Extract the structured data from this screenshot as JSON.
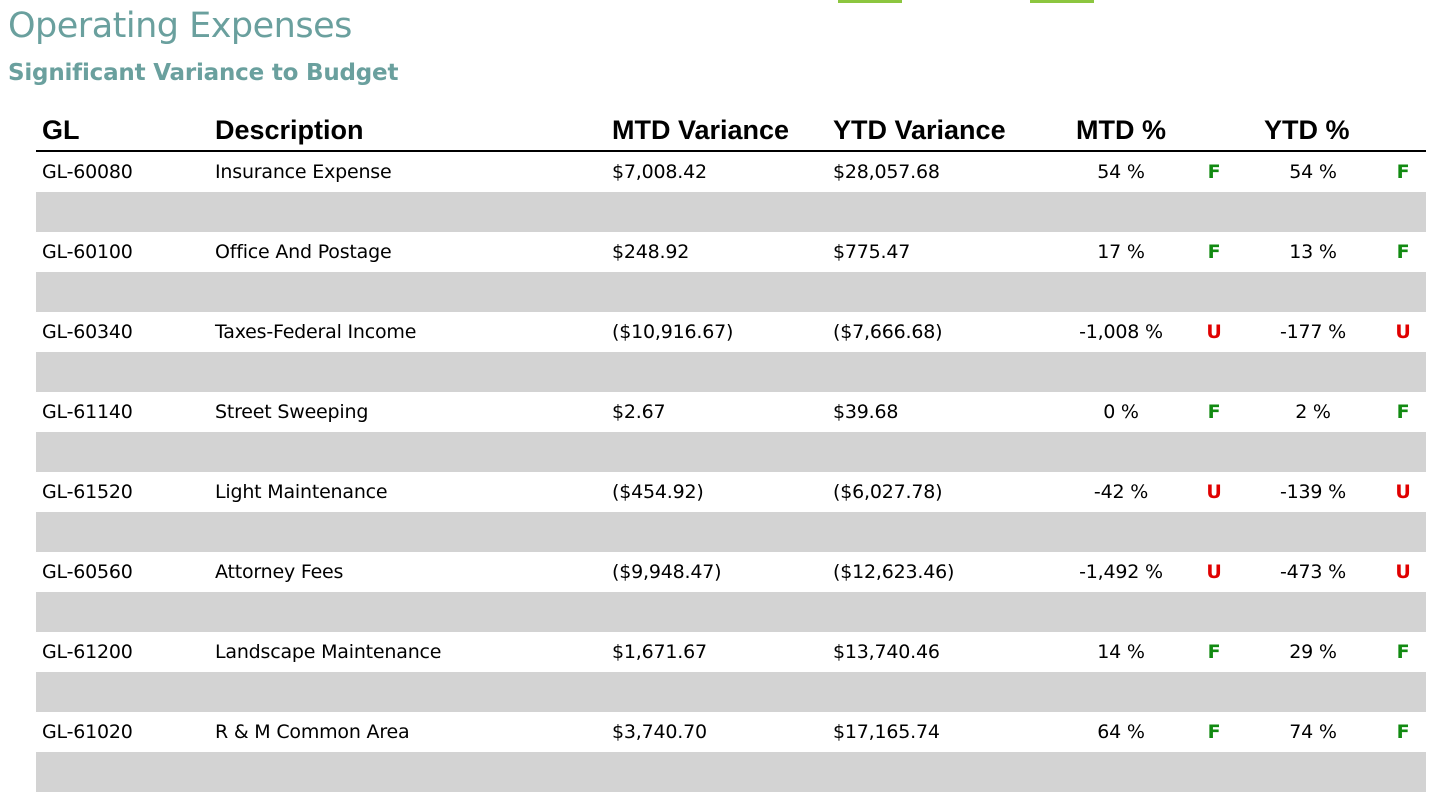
{
  "report": {
    "title": "Operating Expenses",
    "subtitle": "Significant Variance to Budget",
    "accent_color": "#6aa09e",
    "favorable_color": "#118a11",
    "unfavorable_color": "#e00000",
    "band_color": "#d3d3d3"
  },
  "columns": {
    "gl": "GL",
    "description": "Description",
    "mtd_variance": "MTD Variance",
    "ytd_variance": "YTD Variance",
    "mtd_pct": "MTD %",
    "ytd_pct": "YTD %"
  },
  "rows": [
    {
      "gl": "GL-60080",
      "description": "Insurance Expense",
      "mtd_variance": "$7,008.42",
      "ytd_variance": "$28,057.68",
      "mtd_pct": "54 %",
      "mtd_flag": "F",
      "ytd_pct": "54 %",
      "ytd_flag": "F"
    },
    {
      "gl": "GL-60100",
      "description": "Office And Postage",
      "mtd_variance": "$248.92",
      "ytd_variance": "$775.47",
      "mtd_pct": "17 %",
      "mtd_flag": "F",
      "ytd_pct": "13 %",
      "ytd_flag": "F"
    },
    {
      "gl": "GL-60340",
      "description": "Taxes-Federal Income",
      "mtd_variance": "($10,916.67)",
      "ytd_variance": "($7,666.68)",
      "mtd_pct": "-1,008 %",
      "mtd_flag": "U",
      "ytd_pct": "-177 %",
      "ytd_flag": "U"
    },
    {
      "gl": "GL-61140",
      "description": "Street Sweeping",
      "mtd_variance": "$2.67",
      "ytd_variance": "$39.68",
      "mtd_pct": "0 %",
      "mtd_flag": "F",
      "ytd_pct": "2 %",
      "ytd_flag": "F"
    },
    {
      "gl": "GL-61520",
      "description": "Light Maintenance",
      "mtd_variance": "($454.92)",
      "ytd_variance": "($6,027.78)",
      "mtd_pct": "-42 %",
      "mtd_flag": "U",
      "ytd_pct": "-139 %",
      "ytd_flag": "U"
    },
    {
      "gl": "GL-60560",
      "description": "Attorney Fees",
      "mtd_variance": "($9,948.47)",
      "ytd_variance": "($12,623.46)",
      "mtd_pct": "-1,492 %",
      "mtd_flag": "U",
      "ytd_pct": "-473 %",
      "ytd_flag": "U"
    },
    {
      "gl": "GL-61200",
      "description": "Landscape Maintenance",
      "mtd_variance": "$1,671.67",
      "ytd_variance": "$13,740.46",
      "mtd_pct": "14 %",
      "mtd_flag": "F",
      "ytd_pct": "29 %",
      "ytd_flag": "F"
    },
    {
      "gl": "GL-61020",
      "description": "R & M Common Area",
      "mtd_variance": "$3,740.70",
      "ytd_variance": "$17,165.74",
      "mtd_pct": "64 %",
      "mtd_flag": "F",
      "ytd_pct": "74 %",
      "ytd_flag": "F"
    }
  ]
}
